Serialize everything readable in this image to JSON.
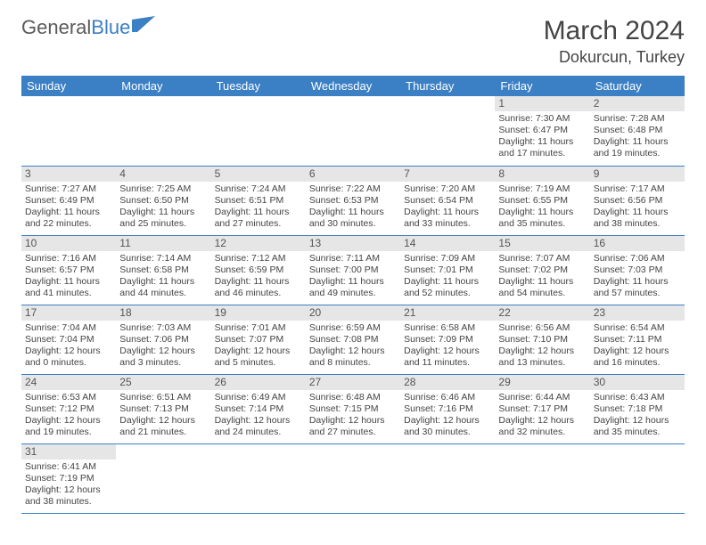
{
  "brand": {
    "part1": "General",
    "part2": "Blue"
  },
  "title": "March 2024",
  "location": "Dokurcun, Turkey",
  "colors": {
    "accent": "#3b7fc4",
    "daynum_bg": "#e6e6e6",
    "text": "#444444",
    "bg": "#ffffff"
  },
  "weekdays": [
    "Sunday",
    "Monday",
    "Tuesday",
    "Wednesday",
    "Thursday",
    "Friday",
    "Saturday"
  ],
  "layout": {
    "weeks": 6,
    "first_weekday_index": 5,
    "days_in_month": 31
  },
  "days": [
    {
      "n": 1,
      "sunrise": "7:30 AM",
      "sunset": "6:47 PM",
      "daylight": "11 hours and 17 minutes."
    },
    {
      "n": 2,
      "sunrise": "7:28 AM",
      "sunset": "6:48 PM",
      "daylight": "11 hours and 19 minutes."
    },
    {
      "n": 3,
      "sunrise": "7:27 AM",
      "sunset": "6:49 PM",
      "daylight": "11 hours and 22 minutes."
    },
    {
      "n": 4,
      "sunrise": "7:25 AM",
      "sunset": "6:50 PM",
      "daylight": "11 hours and 25 minutes."
    },
    {
      "n": 5,
      "sunrise": "7:24 AM",
      "sunset": "6:51 PM",
      "daylight": "11 hours and 27 minutes."
    },
    {
      "n": 6,
      "sunrise": "7:22 AM",
      "sunset": "6:53 PM",
      "daylight": "11 hours and 30 minutes."
    },
    {
      "n": 7,
      "sunrise": "7:20 AM",
      "sunset": "6:54 PM",
      "daylight": "11 hours and 33 minutes."
    },
    {
      "n": 8,
      "sunrise": "7:19 AM",
      "sunset": "6:55 PM",
      "daylight": "11 hours and 35 minutes."
    },
    {
      "n": 9,
      "sunrise": "7:17 AM",
      "sunset": "6:56 PM",
      "daylight": "11 hours and 38 minutes."
    },
    {
      "n": 10,
      "sunrise": "7:16 AM",
      "sunset": "6:57 PM",
      "daylight": "11 hours and 41 minutes."
    },
    {
      "n": 11,
      "sunrise": "7:14 AM",
      "sunset": "6:58 PM",
      "daylight": "11 hours and 44 minutes."
    },
    {
      "n": 12,
      "sunrise": "7:12 AM",
      "sunset": "6:59 PM",
      "daylight": "11 hours and 46 minutes."
    },
    {
      "n": 13,
      "sunrise": "7:11 AM",
      "sunset": "7:00 PM",
      "daylight": "11 hours and 49 minutes."
    },
    {
      "n": 14,
      "sunrise": "7:09 AM",
      "sunset": "7:01 PM",
      "daylight": "11 hours and 52 minutes."
    },
    {
      "n": 15,
      "sunrise": "7:07 AM",
      "sunset": "7:02 PM",
      "daylight": "11 hours and 54 minutes."
    },
    {
      "n": 16,
      "sunrise": "7:06 AM",
      "sunset": "7:03 PM",
      "daylight": "11 hours and 57 minutes."
    },
    {
      "n": 17,
      "sunrise": "7:04 AM",
      "sunset": "7:04 PM",
      "daylight": "12 hours and 0 minutes."
    },
    {
      "n": 18,
      "sunrise": "7:03 AM",
      "sunset": "7:06 PM",
      "daylight": "12 hours and 3 minutes."
    },
    {
      "n": 19,
      "sunrise": "7:01 AM",
      "sunset": "7:07 PM",
      "daylight": "12 hours and 5 minutes."
    },
    {
      "n": 20,
      "sunrise": "6:59 AM",
      "sunset": "7:08 PM",
      "daylight": "12 hours and 8 minutes."
    },
    {
      "n": 21,
      "sunrise": "6:58 AM",
      "sunset": "7:09 PM",
      "daylight": "12 hours and 11 minutes."
    },
    {
      "n": 22,
      "sunrise": "6:56 AM",
      "sunset": "7:10 PM",
      "daylight": "12 hours and 13 minutes."
    },
    {
      "n": 23,
      "sunrise": "6:54 AM",
      "sunset": "7:11 PM",
      "daylight": "12 hours and 16 minutes."
    },
    {
      "n": 24,
      "sunrise": "6:53 AM",
      "sunset": "7:12 PM",
      "daylight": "12 hours and 19 minutes."
    },
    {
      "n": 25,
      "sunrise": "6:51 AM",
      "sunset": "7:13 PM",
      "daylight": "12 hours and 21 minutes."
    },
    {
      "n": 26,
      "sunrise": "6:49 AM",
      "sunset": "7:14 PM",
      "daylight": "12 hours and 24 minutes."
    },
    {
      "n": 27,
      "sunrise": "6:48 AM",
      "sunset": "7:15 PM",
      "daylight": "12 hours and 27 minutes."
    },
    {
      "n": 28,
      "sunrise": "6:46 AM",
      "sunset": "7:16 PM",
      "daylight": "12 hours and 30 minutes."
    },
    {
      "n": 29,
      "sunrise": "6:44 AM",
      "sunset": "7:17 PM",
      "daylight": "12 hours and 32 minutes."
    },
    {
      "n": 30,
      "sunrise": "6:43 AM",
      "sunset": "7:18 PM",
      "daylight": "12 hours and 35 minutes."
    },
    {
      "n": 31,
      "sunrise": "6:41 AM",
      "sunset": "7:19 PM",
      "daylight": "12 hours and 38 minutes."
    }
  ],
  "labels": {
    "sunrise": "Sunrise:",
    "sunset": "Sunset:",
    "daylight": "Daylight:"
  }
}
